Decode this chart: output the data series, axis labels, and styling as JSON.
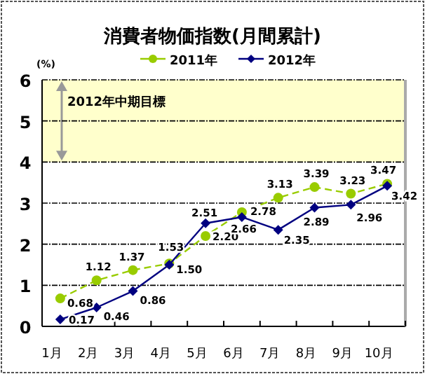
{
  "chart_data": {
    "type": "line",
    "title": "消費者物価指数(月間累計)",
    "ylabel": "(%)",
    "categories": [
      "1月",
      "2月",
      "3月",
      "4月",
      "5月",
      "6月",
      "7月",
      "8月",
      "9月",
      "10月"
    ],
    "series": [
      {
        "name": "2011年",
        "color": "#99cc00",
        "line_style": "dashed",
        "marker": "circle",
        "values": [
          0.68,
          1.12,
          1.37,
          1.53,
          2.2,
          2.78,
          3.13,
          3.39,
          3.23,
          3.47
        ],
        "value_labels": [
          "0.68",
          "1.12",
          "1.37",
          "1.53",
          "2.20",
          "2.78",
          "3.13",
          "3.39",
          "3.23",
          "3.47"
        ]
      },
      {
        "name": "2012年",
        "color": "#000080",
        "line_style": "solid",
        "marker": "diamond",
        "values": [
          0.17,
          0.46,
          0.86,
          1.5,
          2.51,
          2.66,
          2.35,
          2.89,
          2.96,
          3.42
        ],
        "value_labels": [
          "0.17",
          "0.46",
          "0.86",
          "1.50",
          "2.51",
          "2.66",
          "2.35",
          "2.89",
          "2.96",
          "3.42"
        ]
      }
    ],
    "ylim": [
      0,
      6
    ],
    "yticks": [
      0,
      1,
      2,
      3,
      4,
      5,
      6
    ],
    "grid": "y",
    "legend": "top",
    "bands": [
      {
        "axis": "y",
        "from": 4,
        "to": 6,
        "label": "2012年中期目標",
        "color": "#ffffcc"
      }
    ]
  }
}
